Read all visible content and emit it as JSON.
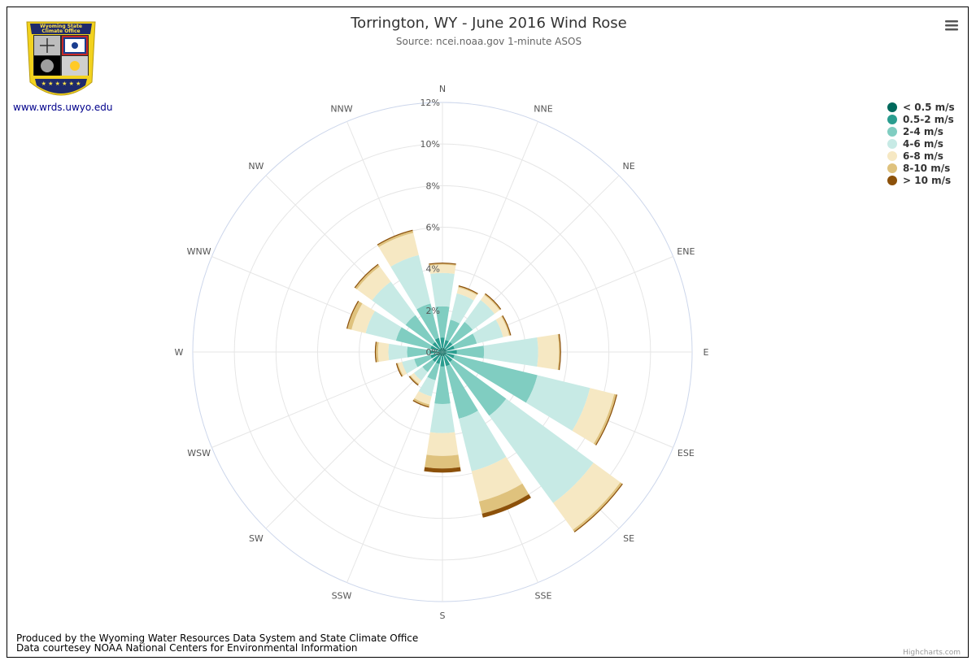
{
  "header": {
    "title": "Torrington, WY - June 2016 Wind Rose",
    "subtitle": "Source: ncei.noaa.gov 1-minute ASOS"
  },
  "logo": {
    "banner_line1": "Wyoming State",
    "banner_line2": "Climate Office",
    "link": "www.wrds.uwyo.edu"
  },
  "footer": {
    "line1": "Produced by the Wyoming Water Resources Data System and State Climate Office",
    "line2": "Data courtesey NOAA National Centers for Environmental Information",
    "credit": "Highcharts.com"
  },
  "menu": {
    "icon": "hamburger-menu-icon"
  },
  "chart_data": {
    "type": "bar",
    "subtype": "polar-stacked-column",
    "title": "Torrington, WY - June 2016 Wind Rose",
    "subtitle": "Source: ncei.noaa.gov 1-minute ASOS",
    "radial_axis": {
      "min": 0,
      "max": 12,
      "tick_interval": 2,
      "unit": "%",
      "tick_labels": [
        "0%",
        "2%",
        "4%",
        "6%",
        "8%",
        "10%",
        "12%"
      ]
    },
    "categories": [
      "N",
      "NNE",
      "NE",
      "ENE",
      "E",
      "ESE",
      "SE",
      "SSE",
      "S",
      "SSW",
      "SW",
      "WSW",
      "W",
      "WNW",
      "NW",
      "NNW"
    ],
    "series": [
      {
        "name": "< 0.5 m/s",
        "color": "#00695c",
        "values": [
          0.2,
          0.2,
          0.2,
          0.2,
          0.2,
          0.2,
          0.2,
          0.2,
          0.2,
          0.2,
          0.2,
          0.2,
          0.2,
          0.2,
          0.2,
          0.2
        ]
      },
      {
        "name": "0.5-2 m/s",
        "color": "#2a9d8f",
        "values": [
          0.5,
          0.4,
          0.4,
          0.4,
          0.5,
          0.4,
          0.4,
          0.5,
          0.5,
          0.4,
          0.4,
          0.4,
          0.4,
          0.4,
          0.4,
          0.5
        ]
      },
      {
        "name": "2-4 m/s",
        "color": "#80cdc1",
        "values": [
          1.5,
          1.0,
          1.2,
          1.1,
          1.3,
          4.1,
          3.2,
          2.6,
          1.8,
          0.8,
          0.6,
          0.8,
          1.1,
          1.7,
          1.6,
          1.7
        ]
      },
      {
        "name": "4-6 m/s",
        "color": "#c7eae5",
        "values": [
          1.6,
          1.3,
          1.3,
          1.3,
          2.6,
          2.6,
          5.2,
          2.6,
          1.4,
          0.8,
          0.5,
          0.6,
          0.9,
          1.5,
          2.0,
          2.4
        ]
      },
      {
        "name": "6-8 m/s",
        "color": "#f6e8c3",
        "values": [
          0.4,
          0.3,
          0.3,
          0.3,
          1.0,
          1.2,
          1.6,
          1.5,
          1.1,
          0.4,
          0.2,
          0.2,
          0.5,
          0.7,
          0.9,
          1.1
        ]
      },
      {
        "name": "8-10 m/s",
        "color": "#dfc27d",
        "values": [
          0.05,
          0.05,
          0.05,
          0.05,
          0.05,
          0.1,
          0.1,
          0.6,
          0.6,
          0.1,
          0.05,
          0.05,
          0.1,
          0.2,
          0.1,
          0.1
        ]
      },
      {
        "name": "> 10 m/s",
        "color": "#8c510a",
        "values": [
          0.05,
          0.05,
          0.05,
          0.05,
          0.05,
          0.05,
          0.05,
          0.2,
          0.2,
          0.05,
          0.05,
          0.05,
          0.05,
          0.05,
          0.05,
          0.05
        ]
      }
    ],
    "legend": {
      "placement": "top-right",
      "items": [
        "< 0.5 m/s",
        "0.5-2 m/s",
        "2-4 m/s",
        "4-6 m/s",
        "6-8 m/s",
        "8-10 m/s",
        "> 10 m/s"
      ]
    },
    "grid": true
  }
}
